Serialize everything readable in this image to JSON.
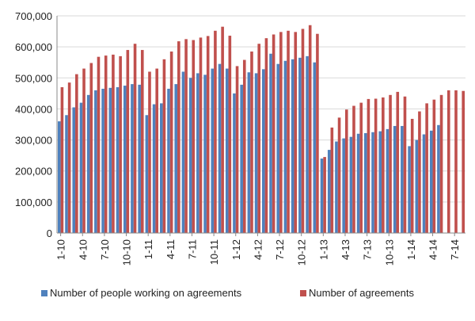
{
  "chart_data": {
    "type": "bar",
    "ylim": [
      0,
      700000
    ],
    "yticks": [
      "0",
      "100,000",
      "200,000",
      "300,000",
      "400,000",
      "500,000",
      "600,000",
      "700,000"
    ],
    "ytick_values": [
      0,
      100000,
      200000,
      300000,
      400000,
      500000,
      600000,
      700000
    ],
    "grid": "horizontal",
    "legend_position": "bottom",
    "categories": [
      "1-10",
      "2-10",
      "3-10",
      "4-10",
      "5-10",
      "6-10",
      "7-10",
      "8-10",
      "9-10",
      "10-10",
      "11-10",
      "12-10",
      "1-11",
      "2-11",
      "3-11",
      "4-11",
      "5-11",
      "6-11",
      "7-11",
      "8-11",
      "9-11",
      "10-11",
      "11-11",
      "12-11",
      "1-12",
      "2-12",
      "3-12",
      "4-12",
      "5-12",
      "6-12",
      "7-12",
      "8-12",
      "9-12",
      "10-12",
      "11-12",
      "12-12",
      "1-13",
      "2-13",
      "3-13",
      "4-13",
      "5-13",
      "6-13",
      "7-13",
      "8-13",
      "9-13",
      "10-13",
      "11-13",
      "12-13",
      "1-14",
      "2-14",
      "3-14",
      "4-14",
      "5-14",
      "6-14",
      "7-14",
      "8-14"
    ],
    "x_tick_labels": [
      "1-10",
      "4-10",
      "7-10",
      "10-10",
      "1-11",
      "4-11",
      "7-11",
      "10-11",
      "1-12",
      "4-12",
      "7-12",
      "10-12",
      "1-13",
      "4-13",
      "7-13",
      "10-13",
      "1-14",
      "4-14",
      "7-14"
    ],
    "series": [
      {
        "name": "Number of people working on agreements",
        "color": "#4F81BD",
        "values": [
          360000,
          380000,
          405000,
          420000,
          445000,
          460000,
          465000,
          468000,
          470000,
          475000,
          480000,
          478000,
          380000,
          415000,
          418000,
          465000,
          480000,
          520000,
          500000,
          515000,
          510000,
          530000,
          545000,
          530000,
          450000,
          478000,
          518000,
          515000,
          528000,
          578000,
          545000,
          555000,
          560000,
          565000,
          570000,
          550000,
          240000,
          268000,
          295000,
          305000,
          310000,
          320000,
          322000,
          325000,
          328000,
          335000,
          345000,
          345000,
          280000,
          300000,
          318000,
          330000,
          348000,
          null,
          null,
          null
        ]
      },
      {
        "name": "Number of agreements",
        "color": "#C0504D",
        "values": [
          470000,
          485000,
          512000,
          530000,
          548000,
          568000,
          572000,
          575000,
          570000,
          590000,
          610000,
          590000,
          520000,
          530000,
          560000,
          585000,
          618000,
          625000,
          622000,
          630000,
          635000,
          652000,
          665000,
          636000,
          538000,
          558000,
          585000,
          610000,
          628000,
          640000,
          648000,
          652000,
          648000,
          658000,
          670000,
          642000,
          245000,
          340000,
          372000,
          398000,
          410000,
          420000,
          432000,
          433000,
          437000,
          445000,
          455000,
          440000,
          368000,
          392000,
          418000,
          430000,
          445000,
          460000,
          460000,
          458000
        ]
      }
    ]
  }
}
